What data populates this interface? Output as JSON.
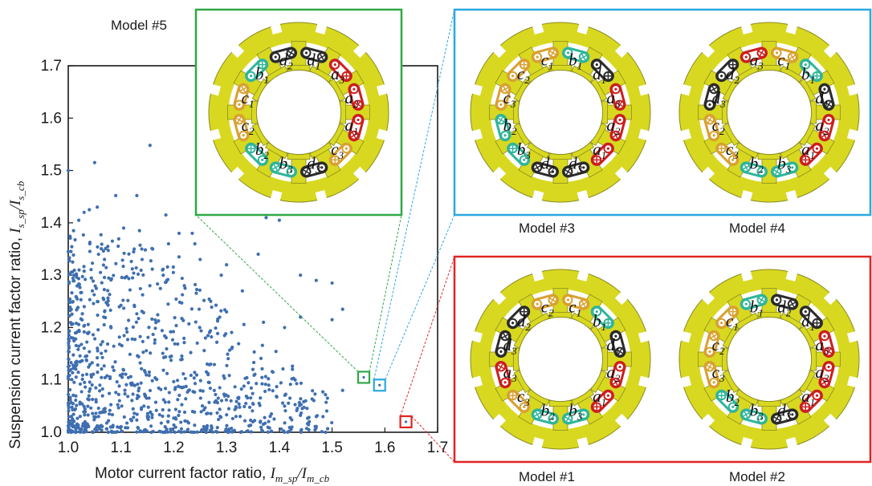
{
  "chart_data": {
    "type": "scatter",
    "xlabel_text": "Motor current factor ratio, ",
    "xlabel_math": "I",
    "xlabel_sub1": "m_sp",
    "xlabel_mid": "/I",
    "xlabel_sub2": "m_cb",
    "ylabel_text": "Suspension current factor ratio, ",
    "ylabel_math": "I",
    "ylabel_sub1": "s_sp",
    "ylabel_mid": "/I",
    "ylabel_sub2": "s_cb",
    "xlim": [
      1.0,
      1.7
    ],
    "ylim": [
      1.0,
      1.7
    ],
    "x_ticks": [
      "1.0",
      "1.1",
      "1.2",
      "1.3",
      "1.4",
      "1.5",
      "1.6",
      "1.7"
    ],
    "y_ticks": [
      "1.0",
      "1.1",
      "1.2",
      "1.3",
      "1.4",
      "1.5",
      "1.6",
      "1.7"
    ],
    "grid": false,
    "point_color": "#3f6fb0",
    "highlighted": [
      {
        "model": "Model #5",
        "x": 1.56,
        "y": 1.105,
        "color": "#2ea845"
      },
      {
        "model": "Model #3",
        "x": 1.59,
        "y": 1.09,
        "color": "#2aa8e0"
      },
      {
        "model": "Model #1",
        "x": 1.64,
        "y": 1.02,
        "color": "#e02424"
      }
    ],
    "scatter_points": [
      [
        1.155,
        1.548
      ],
      [
        1.05,
        1.515
      ],
      [
        1.0,
        1.5
      ],
      [
        1.13,
        1.452
      ],
      [
        1.09,
        1.452
      ],
      [
        1.04,
        1.425
      ],
      [
        1.03,
        1.42
      ],
      [
        1.02,
        1.405
      ],
      [
        1.055,
        1.43
      ],
      [
        1.185,
        1.415
      ],
      [
        1.21,
        1.38
      ],
      [
        1.235,
        1.38
      ],
      [
        1.375,
        1.41
      ],
      [
        1.4,
        1.405
      ],
      [
        1.01,
        1.385
      ],
      [
        1.105,
        1.39
      ],
      [
        1.135,
        1.385
      ],
      [
        1.19,
        1.36
      ],
      [
        1.24,
        1.36
      ],
      [
        1.0,
        1.345
      ],
      [
        1.075,
        1.355
      ],
      [
        1.125,
        1.35
      ],
      [
        1.16,
        1.35
      ],
      [
        1.21,
        1.335
      ],
      [
        1.25,
        1.33
      ],
      [
        1.36,
        1.34
      ],
      [
        1.44,
        1.3
      ],
      [
        1.5,
        1.285
      ],
      [
        1.52,
        1.235
      ],
      [
        1.47,
        1.29
      ],
      [
        1.41,
        1.2
      ],
      [
        1.37,
        1.21
      ],
      [
        1.44,
        1.22
      ],
      [
        1.5,
        1.215
      ],
      [
        1.33,
        1.27
      ],
      [
        1.3,
        1.23
      ],
      [
        1.31,
        1.16
      ],
      [
        1.35,
        1.12
      ],
      [
        1.38,
        1.09
      ],
      [
        1.43,
        1.1
      ],
      [
        1.41,
        1.05
      ],
      [
        1.45,
        1.06
      ],
      [
        1.52,
        1.08
      ],
      [
        1.47,
        1.03
      ],
      [
        1.385,
        1.035
      ],
      [
        1.35,
        1.02
      ],
      [
        1.28,
        1.06
      ],
      [
        1.27,
        1.13
      ],
      [
        1.26,
        1.18
      ],
      [
        1.29,
        1.3
      ],
      [
        1.3,
        1.32
      ],
      [
        1.27,
        1.25
      ],
      [
        1.22,
        1.28
      ],
      [
        1.18,
        1.3
      ],
      [
        1.14,
        1.33
      ]
    ]
  },
  "models": {
    "model5": {
      "caption": "Model #5",
      "frame_color": "#2ea845"
    },
    "model3": {
      "caption": "Model #3",
      "frame_color": "#2aa8e0"
    },
    "model4": {
      "caption": "Model #4",
      "frame_color": "#2aa8e0"
    },
    "model1": {
      "caption": "Model #1",
      "frame_color": "#e02424"
    },
    "model2": {
      "caption": "Model #2",
      "frame_color": "#e02424"
    }
  },
  "coil_colors": {
    "a": "#cc1f1f",
    "b": "#2fb59a",
    "c": "#d9a030",
    "d": "#2b2b2b",
    "stator": "#d8d820",
    "stator_edge": "#8a8a20"
  },
  "coil_letters": [
    "a",
    "b",
    "c",
    "d"
  ],
  "coil_indices": [
    "1",
    "2",
    "3"
  ]
}
